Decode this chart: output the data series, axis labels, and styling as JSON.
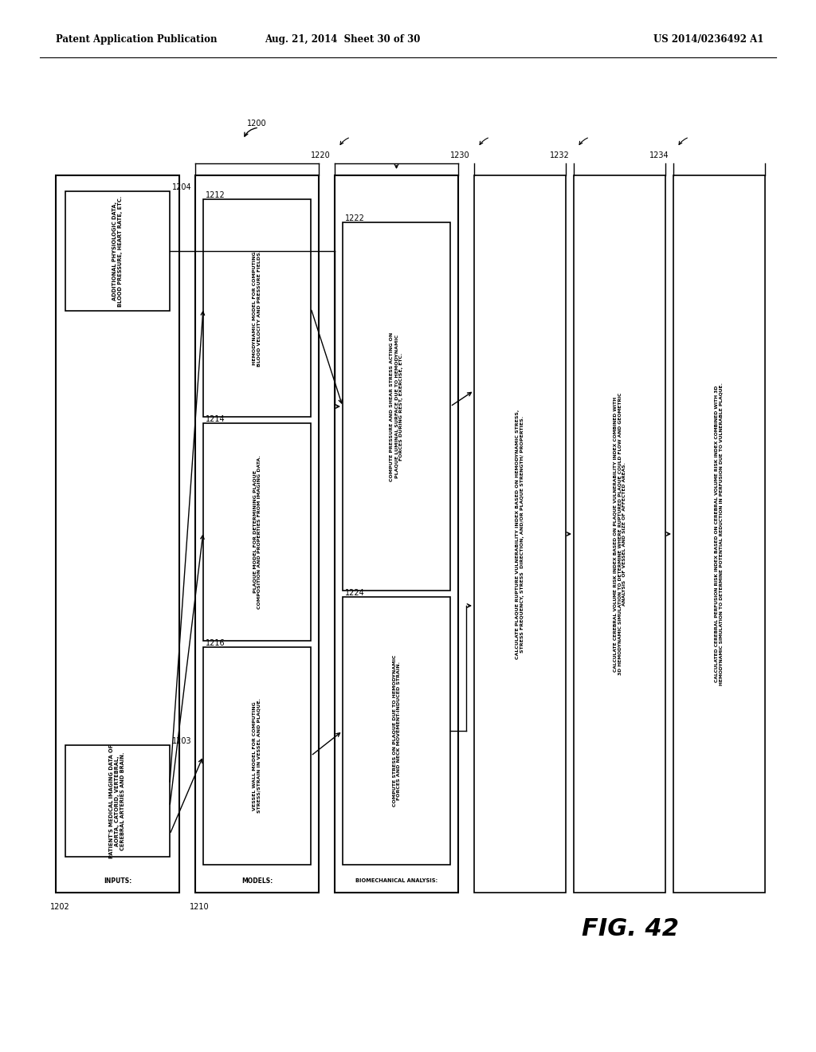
{
  "header_left": "Patent Application Publication",
  "header_center": "Aug. 21, 2014  Sheet 30 of 30",
  "header_right": "US 2014/0236492 A1",
  "fig_label": "FIG. 42",
  "background_color": "#ffffff",
  "lw": 1.2,
  "font_size_label": 7.0,
  "font_size_ref": 7.0,
  "font_size_text": 5.2,
  "header_font_size": 8.5,
  "label_1200": "1200",
  "label_1202": "1202",
  "label_1203": "1203",
  "label_1204": "1204",
  "label_1210": "1210",
  "label_1212": "1212",
  "label_1214": "1214",
  "label_1216": "1216",
  "label_1220": "1220",
  "label_1222": "1222",
  "label_1224": "1224",
  "label_1230": "1230",
  "label_1232": "1232",
  "label_1234": "1234",
  "text_inputs": "INPUTS:",
  "text_models": "MODELS:",
  "text_bio": "BIOMECHANICAL ANALYSIS:",
  "text_1203": "PATIENT'S MEDICAL IMAGING DATA OF\nAORTA, CATORID, VERTEBRAL,\nCEREBRAL ARTERIES AND BRAIN.",
  "text_1204": "ADDITIONAL PHYSIOLOGIC DATA,\nBLOOD PRESSURE, HEART RATE, ETC.",
  "text_1212": "HEMODYNAMIC MODEL FOR COMPUTING\nBLOOD VELOCITY AND PRESSURE FIELDS.",
  "text_1214": "PLAQUE MODEL FOR DETERMINING PLAQUE\nCOMPOSITION AND PROPERTIES FROM IMAGING DATA.",
  "text_1216": "VESSEL WALL MODEL FOR COMPUTING\nSTRESS/STRAIN IN VESSEL AND PLAQUE.",
  "text_1222": "COMPUTE PRESSURE AND SHEAR STRESS ACTING ON\nPLAQUE LUMINAL SURFACE DUE TO HEMODYNAMIC\nFORCES DURING REST, EXERCISE, ETC.",
  "text_1224": "COMPUTE STRESS ON PLAQUE DUE TO HEMODYNAMIC\nFORCES AND NECK MOVEMENT-INDUCED STRAIN.",
  "text_1230": "CALCULATE PLAQUE RUPTURE VULNERABILITY INDEX BASED ON HEMODYNAMIC STRESS,\nSTRESS FREQUENCY, STRESS  DIRECTION, AND/OR PLAQUE STRENGTH/ PROPERTIES.",
  "text_1232": "CALCULATE CEREBRAL VOLUME RISK INDEX BASED ON PLAQUE VULNERABILITY INDEX COMBINED WITH\n3D HEMODYNAMIC SIMULATION TO DETERMINE WHERE RUPTURED PLAQUE COULD FLOW AND GEOMETRIC\nANALYSIS  OF VESSEL AND SIZE OF AFFECTED AREAS.",
  "text_1234": "CALCULATED CEREBRAL PERFUSION RISK INDEX BASED ON CEREBRAL VOLUME RISK INDEX COMBINED WITH 3D\nHEMODYNAMIC SIMULATION TO DETERMINE POTENTIAL REDUCTION IN PERFUSION DUE TO VULNERABLE PLAQUE."
}
